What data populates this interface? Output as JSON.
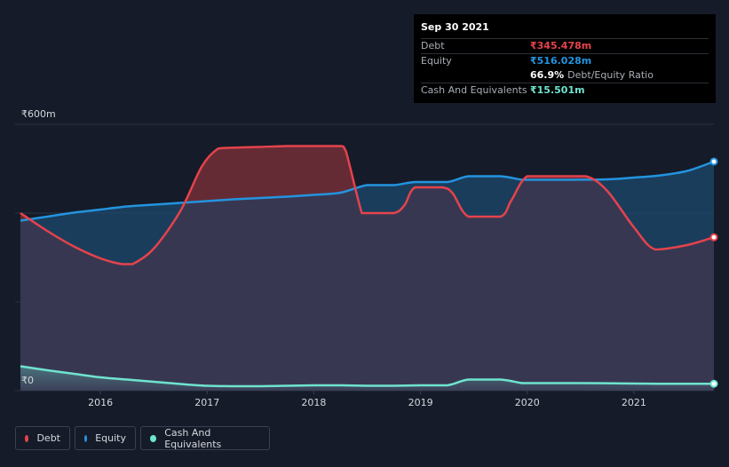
{
  "chart_data": {
    "type": "area",
    "currency_symbol": "₹",
    "y_axis_labels": [
      "₹600m",
      "₹0"
    ],
    "ylim": [
      0,
      600
    ],
    "x_ticks": [
      {
        "label": "2016",
        "x": 2016.0
      },
      {
        "label": "2017",
        "x": 2017.0
      },
      {
        "label": "2018",
        "x": 2018.0
      },
      {
        "label": "2019",
        "x": 2019.0
      },
      {
        "label": "2020",
        "x": 2020.0
      },
      {
        "label": "2021",
        "x": 2021.0
      }
    ],
    "x_range": [
      2015.2,
      2021.75
    ],
    "series": [
      {
        "name": "Debt",
        "color": "#e5434c",
        "points": [
          [
            2015.25,
            400
          ],
          [
            2015.5,
            360
          ],
          [
            2015.75,
            325
          ],
          [
            2016.0,
            298
          ],
          [
            2016.2,
            285
          ],
          [
            2016.3,
            285
          ],
          [
            2016.5,
            320
          ],
          [
            2016.75,
            405
          ],
          [
            2016.95,
            505
          ],
          [
            2017.1,
            545
          ],
          [
            2017.2,
            547
          ],
          [
            2017.5,
            549
          ],
          [
            2017.75,
            551
          ],
          [
            2018.0,
            551
          ],
          [
            2018.25,
            551
          ],
          [
            2018.3,
            540
          ],
          [
            2018.45,
            400
          ],
          [
            2018.5,
            400
          ],
          [
            2018.75,
            400
          ],
          [
            2018.85,
            418
          ],
          [
            2018.95,
            458
          ],
          [
            2019.2,
            458
          ],
          [
            2019.3,
            445
          ],
          [
            2019.45,
            392
          ],
          [
            2019.75,
            392
          ],
          [
            2019.85,
            428
          ],
          [
            2020.0,
            483
          ],
          [
            2020.25,
            483
          ],
          [
            2020.55,
            483
          ],
          [
            2020.75,
            450
          ],
          [
            2021.0,
            368
          ],
          [
            2021.2,
            318
          ],
          [
            2021.5,
            328
          ],
          [
            2021.75,
            345.478
          ]
        ]
      },
      {
        "name": "Equity",
        "color": "#2394df",
        "points": [
          [
            2015.25,
            383
          ],
          [
            2015.5,
            392
          ],
          [
            2015.75,
            401
          ],
          [
            2016.0,
            408
          ],
          [
            2016.25,
            415
          ],
          [
            2016.5,
            419
          ],
          [
            2016.75,
            423
          ],
          [
            2017.0,
            427
          ],
          [
            2017.25,
            431
          ],
          [
            2017.5,
            434
          ],
          [
            2017.75,
            437
          ],
          [
            2018.0,
            441
          ],
          [
            2018.25,
            446
          ],
          [
            2018.5,
            463
          ],
          [
            2018.75,
            463
          ],
          [
            2018.95,
            470
          ],
          [
            2019.25,
            470
          ],
          [
            2019.45,
            483
          ],
          [
            2019.75,
            483
          ],
          [
            2019.95,
            475
          ],
          [
            2020.0,
            475
          ],
          [
            2020.25,
            475
          ],
          [
            2020.75,
            476
          ],
          [
            2021.0,
            480
          ],
          [
            2021.25,
            485
          ],
          [
            2021.5,
            495
          ],
          [
            2021.75,
            516.028
          ]
        ]
      },
      {
        "name": "Cash And Equivalents",
        "color": "#6fe3cf",
        "points": [
          [
            2015.25,
            55
          ],
          [
            2015.5,
            46
          ],
          [
            2015.75,
            38
          ],
          [
            2016.0,
            30
          ],
          [
            2016.25,
            25
          ],
          [
            2016.5,
            20
          ],
          [
            2016.75,
            15
          ],
          [
            2017.0,
            11
          ],
          [
            2017.25,
            10
          ],
          [
            2017.5,
            10
          ],
          [
            2017.75,
            11
          ],
          [
            2018.0,
            12
          ],
          [
            2018.25,
            12
          ],
          [
            2018.5,
            11
          ],
          [
            2018.75,
            11
          ],
          [
            2019.0,
            12
          ],
          [
            2019.25,
            12
          ],
          [
            2019.45,
            25
          ],
          [
            2019.75,
            25
          ],
          [
            2019.95,
            17
          ],
          [
            2020.0,
            17
          ],
          [
            2020.5,
            17
          ],
          [
            2021.0,
            16
          ],
          [
            2021.25,
            15.5
          ],
          [
            2021.75,
            15.501
          ]
        ]
      }
    ]
  },
  "tooltip": {
    "date": "Sep 30 2021",
    "debt_label": "Debt",
    "debt_value": "₹345.478m",
    "equity_label": "Equity",
    "equity_value": "₹516.028m",
    "ratio_value": "66.9%",
    "ratio_label": "Debt/Equity Ratio",
    "cash_label": "Cash And Equivalents",
    "cash_value": "₹15.501m"
  },
  "legend": {
    "debt": "Debt",
    "equity": "Equity",
    "cash": "Cash And Equivalents"
  },
  "colors": {
    "debt": "#e5434c",
    "equity": "#2394df",
    "cash": "#6fe3cf",
    "background": "#151b28"
  }
}
